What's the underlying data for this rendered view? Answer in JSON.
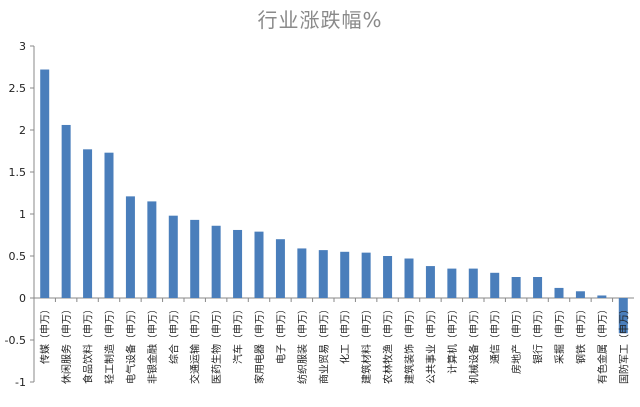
{
  "chart_data": {
    "type": "bar",
    "title": "行业涨跌幅%",
    "xlabel": "",
    "ylabel": "",
    "ylim": [
      -1,
      3
    ],
    "yticks": [
      "3",
      "2.5",
      "2",
      "1.5",
      "1",
      "0.5",
      "0",
      "-0.5",
      "-1"
    ],
    "ytick_values": [
      3,
      2.5,
      2,
      1.5,
      1,
      0.5,
      0,
      -0.5,
      -1
    ],
    "grid": false,
    "legend": "none",
    "bar_color": "#4a7ebb",
    "categories": [
      "传媒（申万）",
      "休闲服务（申万）",
      "食品饮料（申万）",
      "轻工制造（申万）",
      "电气设备（申万）",
      "非银金融（申万）",
      "综合（申万）",
      "交通运输（申万）",
      "医药生物（申万）",
      "汽车（申万）",
      "家用电器（申万）",
      "电子（申万）",
      "纺织服装（申万）",
      "商业贸易（申万）",
      "化工（申万）",
      "建筑材料（申万）",
      "农林牧渔（申万）",
      "建筑装饰（申万）",
      "公共事业（申万）",
      "计算机（申万）",
      "机械设备（申万）",
      "通信（申万）",
      "房地产（申万）",
      "银行（申万）",
      "采掘（申万）",
      "钢铁（申万）",
      "有色金属（申万）",
      "国防军工（申万）"
    ],
    "values": [
      2.72,
      2.06,
      1.77,
      1.73,
      1.21,
      1.15,
      0.98,
      0.93,
      0.86,
      0.81,
      0.79,
      0.7,
      0.59,
      0.57,
      0.55,
      0.54,
      0.5,
      0.47,
      0.38,
      0.35,
      0.35,
      0.3,
      0.25,
      0.25,
      0.12,
      0.08,
      0.03,
      -0.42
    ]
  }
}
